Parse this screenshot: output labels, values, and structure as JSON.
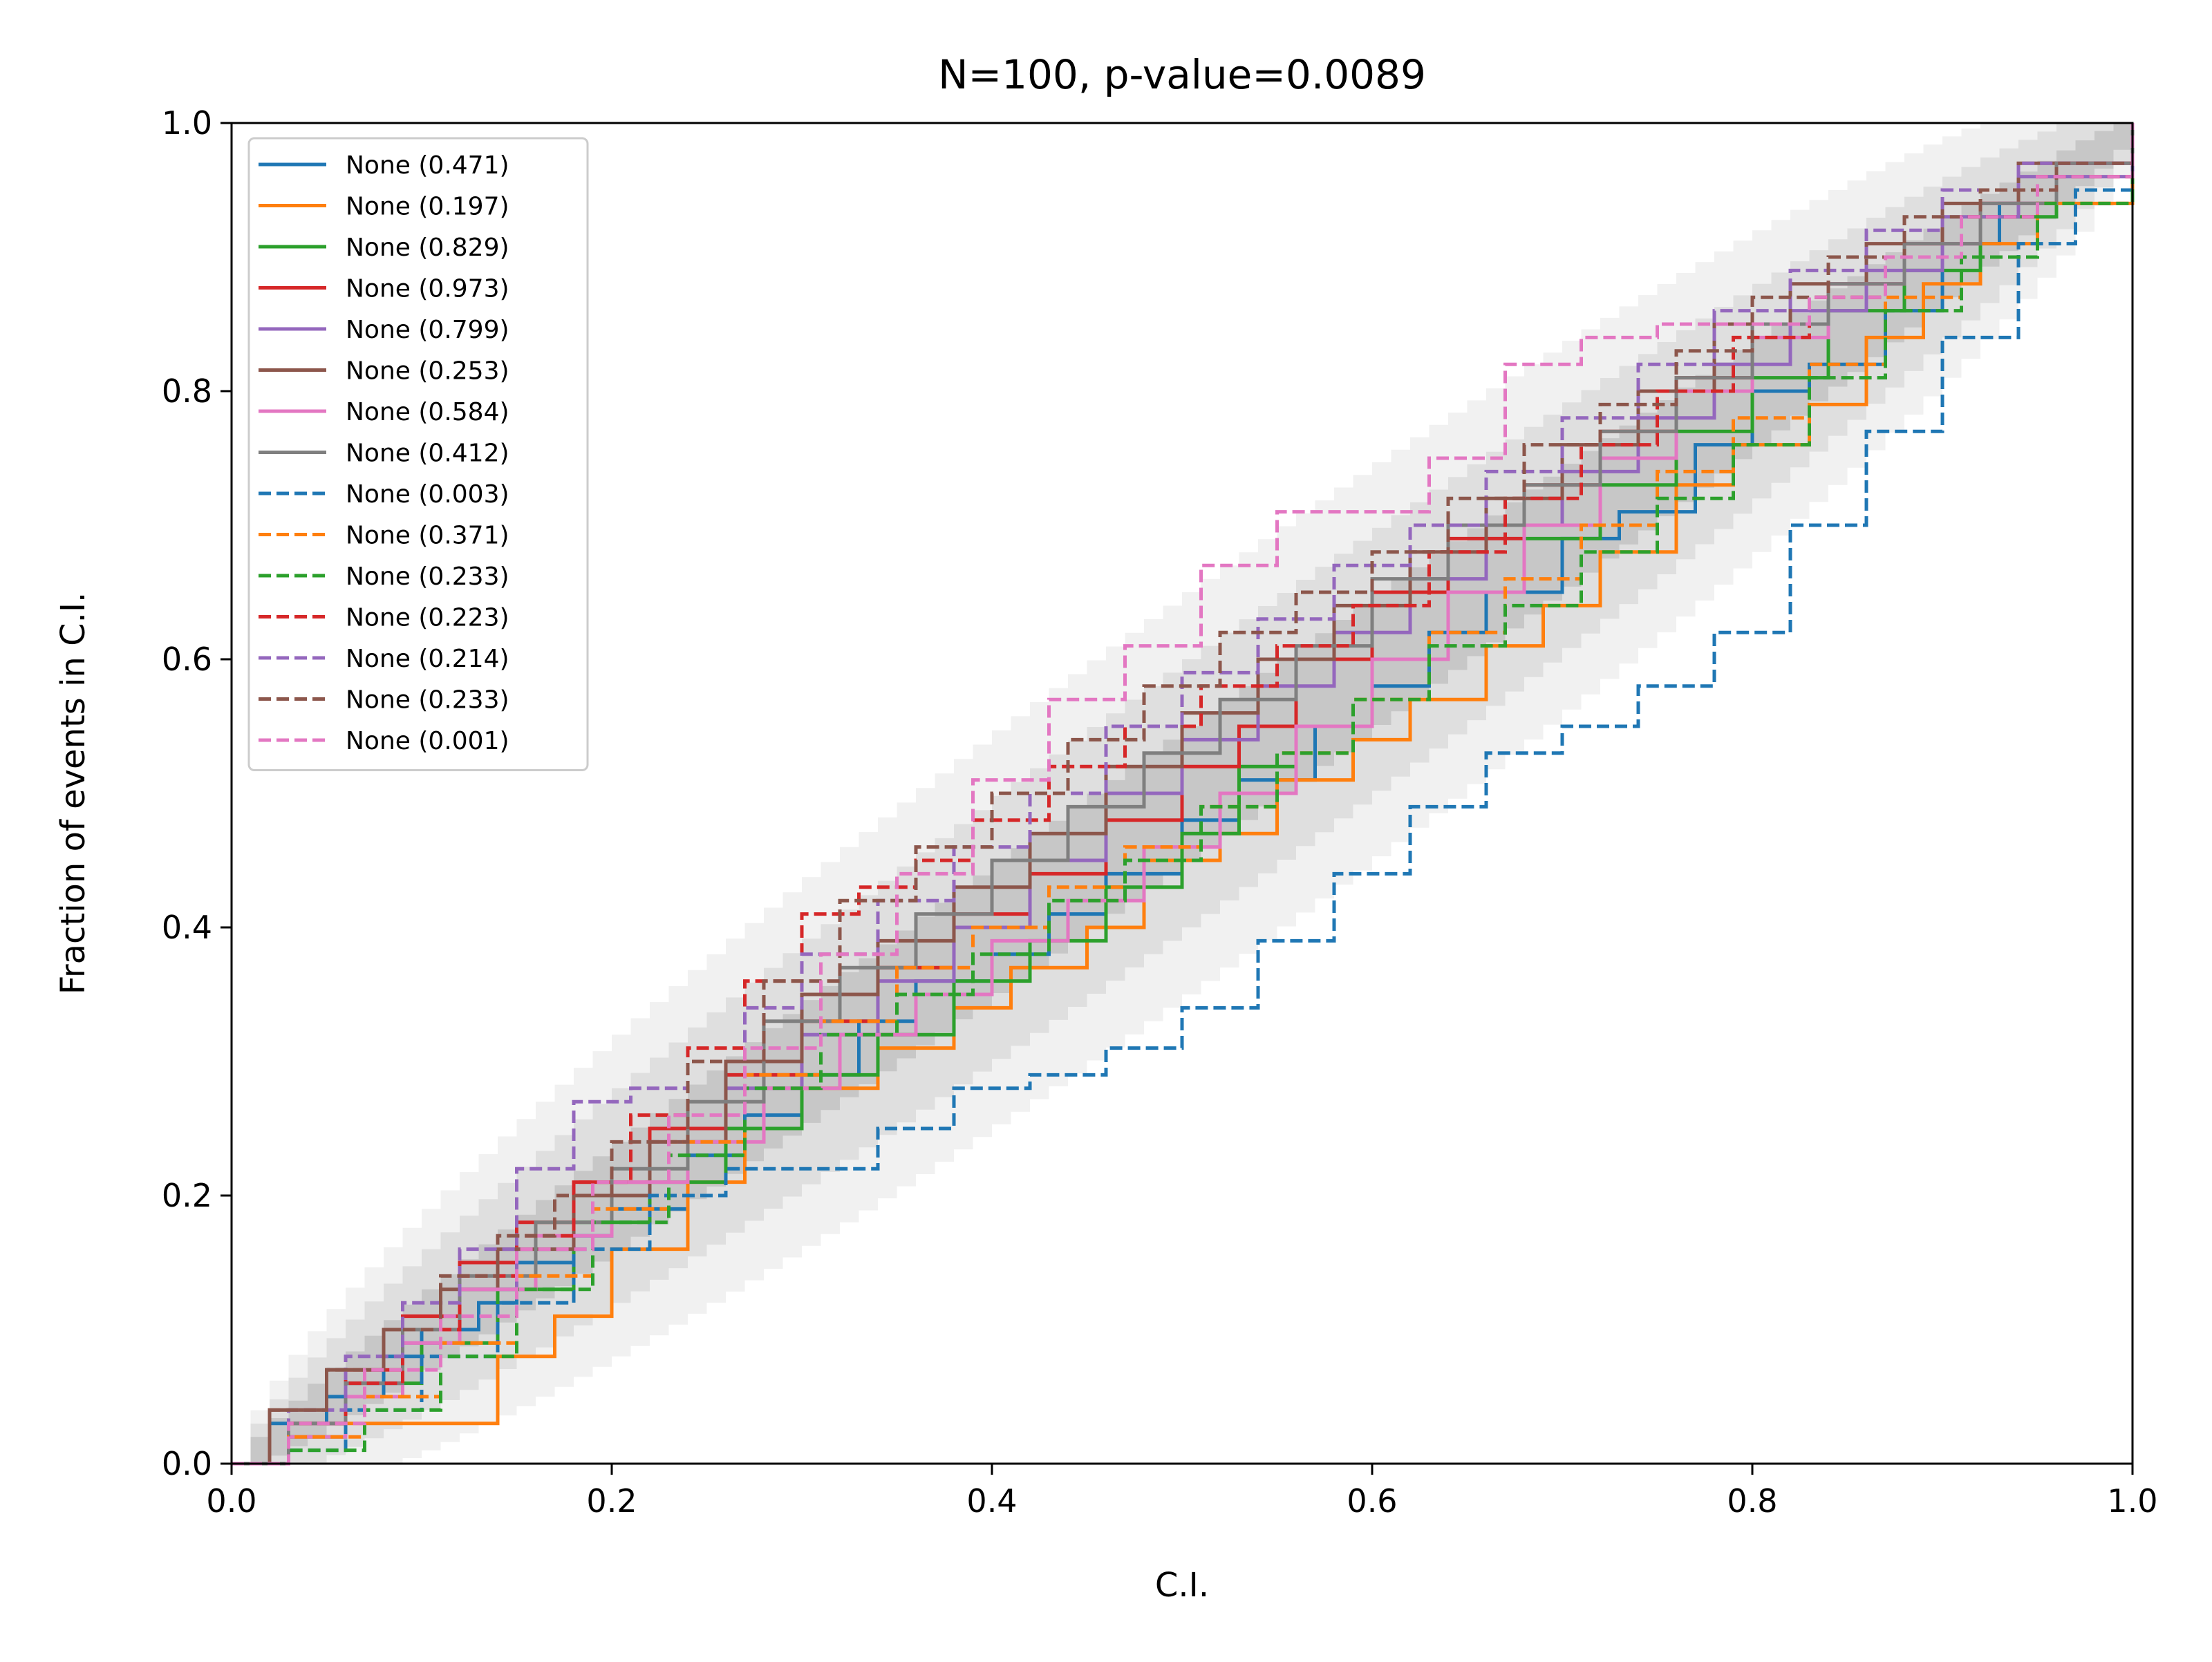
{
  "chart_data": {
    "type": "line",
    "title": "N=100, p-value=0.0089",
    "xlabel": "C.I.",
    "ylabel": "Fraction of events in C.I.",
    "xlim": [
      0.0,
      1.0
    ],
    "ylim": [
      0.0,
      1.0
    ],
    "xticks": [
      "0.0",
      "0.2",
      "0.4",
      "0.6",
      "0.8",
      "1.0"
    ],
    "yticks": [
      "0.0",
      "0.2",
      "0.4",
      "0.6",
      "0.8",
      "1.0"
    ],
    "grid": false,
    "legend_position": "upper-left",
    "confidence_bands": [
      {
        "sigma": 1,
        "color": "#bfbfbf",
        "opacity": 0.75
      },
      {
        "sigma": 2,
        "color": "#d6d6d6",
        "opacity": 0.65
      },
      {
        "sigma": 3,
        "color": "#e8e8e8",
        "opacity": 0.6
      }
    ],
    "series": [
      {
        "name": "None (0.471)",
        "color": "#1f77b4",
        "dash": "solid",
        "x": [
          0,
          0.02,
          0.05,
          0.08,
          0.1,
          0.13,
          0.15,
          0.18,
          0.2,
          0.24,
          0.27,
          0.3,
          0.33,
          0.36,
          0.4,
          0.43,
          0.46,
          0.5,
          0.53,
          0.57,
          0.6,
          0.63,
          0.66,
          0.7,
          0.73,
          0.77,
          0.8,
          0.83,
          0.87,
          0.9,
          0.93,
          0.96,
          1.0
        ],
        "y": [
          0,
          0.03,
          0.05,
          0.08,
          0.1,
          0.12,
          0.15,
          0.17,
          0.19,
          0.23,
          0.26,
          0.29,
          0.33,
          0.36,
          0.38,
          0.41,
          0.44,
          0.48,
          0.51,
          0.55,
          0.58,
          0.62,
          0.65,
          0.69,
          0.71,
          0.76,
          0.8,
          0.82,
          0.86,
          0.91,
          0.94,
          0.97,
          1.0
        ]
      },
      {
        "name": "None (0.197)",
        "color": "#ff7f0e",
        "dash": "solid",
        "x": [
          0,
          0.03,
          0.06,
          0.1,
          0.137,
          0.14,
          0.17,
          0.2,
          0.24,
          0.27,
          0.3,
          0.34,
          0.38,
          0.41,
          0.45,
          0.48,
          0.52,
          0.55,
          0.59,
          0.62,
          0.66,
          0.69,
          0.72,
          0.76,
          0.79,
          0.83,
          0.86,
          0.89,
          0.92,
          0.95,
          1.0
        ],
        "y": [
          0,
          0.03,
          0.03,
          0.03,
          0.03,
          0.08,
          0.11,
          0.16,
          0.21,
          0.25,
          0.28,
          0.31,
          0.34,
          0.37,
          0.4,
          0.45,
          0.47,
          0.51,
          0.54,
          0.57,
          0.61,
          0.64,
          0.68,
          0.73,
          0.76,
          0.79,
          0.84,
          0.88,
          0.91,
          0.94,
          1.0
        ]
      },
      {
        "name": "None (0.829)",
        "color": "#2ca02c",
        "dash": "solid",
        "x": [
          0,
          0.03,
          0.06,
          0.1,
          0.14,
          0.18,
          0.22,
          0.26,
          0.3,
          0.34,
          0.38,
          0.42,
          0.46,
          0.5,
          0.53,
          0.56,
          0.6,
          0.64,
          0.68,
          0.72,
          0.76,
          0.8,
          0.84,
          0.88,
          0.92,
          0.96,
          1.0
        ],
        "y": [
          0,
          0.02,
          0.06,
          0.09,
          0.13,
          0.18,
          0.21,
          0.25,
          0.29,
          0.32,
          0.36,
          0.39,
          0.43,
          0.47,
          0.52,
          0.55,
          0.6,
          0.65,
          0.69,
          0.73,
          0.77,
          0.81,
          0.86,
          0.89,
          0.93,
          0.97,
          1.0
        ]
      },
      {
        "name": "None (0.973)",
        "color": "#d62728",
        "dash": "solid",
        "x": [
          0,
          0.03,
          0.06,
          0.09,
          0.12,
          0.15,
          0.18,
          0.22,
          0.26,
          0.3,
          0.34,
          0.38,
          0.42,
          0.46,
          0.5,
          0.53,
          0.56,
          0.6,
          0.64,
          0.68,
          0.72,
          0.76,
          0.8,
          0.84,
          0.88,
          0.92,
          0.96,
          1.0
        ],
        "y": [
          0,
          0.03,
          0.07,
          0.11,
          0.15,
          0.18,
          0.21,
          0.25,
          0.29,
          0.33,
          0.37,
          0.41,
          0.44,
          0.48,
          0.52,
          0.55,
          0.6,
          0.65,
          0.69,
          0.73,
          0.77,
          0.81,
          0.85,
          0.88,
          0.91,
          0.94,
          0.97,
          1.0
        ]
      },
      {
        "name": "None (0.799)",
        "color": "#9467bd",
        "dash": "solid",
        "x": [
          0,
          0.03,
          0.06,
          0.09,
          0.12,
          0.15,
          0.18,
          0.22,
          0.26,
          0.3,
          0.34,
          0.38,
          0.42,
          0.46,
          0.5,
          0.54,
          0.58,
          0.62,
          0.66,
          0.7,
          0.74,
          0.78,
          0.82,
          0.86,
          0.9,
          0.94,
          1.0
        ],
        "y": [
          0,
          0.03,
          0.06,
          0.09,
          0.13,
          0.16,
          0.2,
          0.24,
          0.28,
          0.32,
          0.36,
          0.4,
          0.45,
          0.5,
          0.54,
          0.58,
          0.62,
          0.66,
          0.7,
          0.74,
          0.78,
          0.82,
          0.86,
          0.89,
          0.93,
          0.96,
          1.0
        ]
      },
      {
        "name": "None (0.253)",
        "color": "#8c564b",
        "dash": "solid",
        "x": [
          0,
          0.02,
          0.05,
          0.08,
          0.11,
          0.14,
          0.18,
          0.22,
          0.26,
          0.3,
          0.34,
          0.38,
          0.42,
          0.46,
          0.5,
          0.54,
          0.58,
          0.62,
          0.66,
          0.7,
          0.74,
          0.78,
          0.82,
          0.86,
          0.9,
          0.94,
          1.0
        ],
        "y": [
          0,
          0.04,
          0.07,
          0.1,
          0.13,
          0.16,
          0.2,
          0.24,
          0.3,
          0.35,
          0.39,
          0.43,
          0.47,
          0.52,
          0.56,
          0.6,
          0.64,
          0.68,
          0.72,
          0.76,
          0.8,
          0.85,
          0.88,
          0.91,
          0.94,
          0.97,
          1.0
        ]
      },
      {
        "name": "None (0.584)",
        "color": "#e377c2",
        "dash": "solid",
        "x": [
          0,
          0.03,
          0.06,
          0.09,
          0.12,
          0.16,
          0.2,
          0.24,
          0.28,
          0.32,
          0.36,
          0.4,
          0.44,
          0.48,
          0.52,
          0.56,
          0.6,
          0.64,
          0.68,
          0.72,
          0.76,
          0.8,
          0.84,
          0.88,
          0.92,
          0.96,
          1.0
        ],
        "y": [
          0,
          0.02,
          0.05,
          0.09,
          0.13,
          0.17,
          0.21,
          0.24,
          0.28,
          0.32,
          0.35,
          0.39,
          0.42,
          0.46,
          0.5,
          0.55,
          0.6,
          0.65,
          0.7,
          0.75,
          0.8,
          0.84,
          0.88,
          0.91,
          0.94,
          0.97,
          1.0
        ]
      },
      {
        "name": "None (0.412)",
        "color": "#7f7f7f",
        "dash": "solid",
        "x": [
          0,
          0.03,
          0.06,
          0.09,
          0.12,
          0.16,
          0.2,
          0.24,
          0.28,
          0.32,
          0.36,
          0.4,
          0.44,
          0.48,
          0.52,
          0.56,
          0.6,
          0.64,
          0.68,
          0.72,
          0.76,
          0.8,
          0.84,
          0.88,
          0.92,
          0.96,
          1.0
        ],
        "y": [
          0,
          0.03,
          0.06,
          0.1,
          0.14,
          0.18,
          0.22,
          0.27,
          0.33,
          0.37,
          0.41,
          0.45,
          0.49,
          0.53,
          0.57,
          0.61,
          0.66,
          0.7,
          0.73,
          0.77,
          0.81,
          0.85,
          0.88,
          0.91,
          0.94,
          0.97,
          1.0
        ]
      },
      {
        "name": "None (0.003)",
        "color": "#1f77b4",
        "dash": "dashed",
        "x": [
          0,
          0.03,
          0.06,
          0.1,
          0.14,
          0.18,
          0.22,
          0.26,
          0.3,
          0.34,
          0.38,
          0.42,
          0.46,
          0.5,
          0.54,
          0.58,
          0.62,
          0.66,
          0.7,
          0.74,
          0.78,
          0.82,
          0.86,
          0.9,
          0.94,
          0.97,
          1.0
        ],
        "y": [
          0,
          0.01,
          0.04,
          0.08,
          0.12,
          0.16,
          0.2,
          0.22,
          0.22,
          0.25,
          0.28,
          0.29,
          0.31,
          0.34,
          0.39,
          0.44,
          0.49,
          0.53,
          0.55,
          0.58,
          0.62,
          0.7,
          0.77,
          0.84,
          0.91,
          0.95,
          1.0
        ]
      },
      {
        "name": "None (0.371)",
        "color": "#ff7f0e",
        "dash": "dashed",
        "x": [
          0,
          0.03,
          0.07,
          0.11,
          0.15,
          0.19,
          0.23,
          0.27,
          0.31,
          0.35,
          0.39,
          0.43,
          0.47,
          0.51,
          0.55,
          0.59,
          0.63,
          0.67,
          0.71,
          0.75,
          0.79,
          0.83,
          0.87,
          0.91,
          0.95,
          1.0
        ],
        "y": [
          0,
          0.02,
          0.05,
          0.09,
          0.14,
          0.19,
          0.24,
          0.29,
          0.33,
          0.37,
          0.4,
          0.43,
          0.46,
          0.49,
          0.53,
          0.57,
          0.62,
          0.66,
          0.7,
          0.74,
          0.78,
          0.82,
          0.87,
          0.9,
          0.94,
          1.0
        ]
      },
      {
        "name": "None (0.233)",
        "color": "#2ca02c",
        "dash": "dashed",
        "x": [
          0,
          0.03,
          0.07,
          0.11,
          0.15,
          0.19,
          0.23,
          0.27,
          0.31,
          0.35,
          0.39,
          0.43,
          0.47,
          0.51,
          0.55,
          0.59,
          0.63,
          0.67,
          0.71,
          0.75,
          0.79,
          0.83,
          0.87,
          0.91,
          0.95,
          1.0
        ],
        "y": [
          0,
          0.01,
          0.04,
          0.08,
          0.13,
          0.18,
          0.23,
          0.28,
          0.32,
          0.35,
          0.38,
          0.42,
          0.45,
          0.49,
          0.53,
          0.57,
          0.61,
          0.64,
          0.68,
          0.72,
          0.76,
          0.81,
          0.86,
          0.9,
          0.94,
          1.0
        ]
      },
      {
        "name": "None (0.223)",
        "color": "#d62728",
        "dash": "dashed",
        "x": [
          0,
          0.03,
          0.06,
          0.09,
          0.12,
          0.15,
          0.18,
          0.21,
          0.24,
          0.27,
          0.3,
          0.33,
          0.36,
          0.39,
          0.43,
          0.47,
          0.51,
          0.55,
          0.59,
          0.63,
          0.67,
          0.71,
          0.75,
          0.79,
          0.83,
          0.87,
          0.91,
          0.95,
          1.0
        ],
        "y": [
          0,
          0.03,
          0.06,
          0.1,
          0.14,
          0.17,
          0.21,
          0.26,
          0.31,
          0.36,
          0.41,
          0.43,
          0.45,
          0.48,
          0.52,
          0.55,
          0.58,
          0.61,
          0.64,
          0.68,
          0.72,
          0.76,
          0.8,
          0.84,
          0.87,
          0.9,
          0.93,
          0.96,
          1.0
        ]
      },
      {
        "name": "None (0.214)",
        "color": "#9467bd",
        "dash": "dashed",
        "x": [
          0,
          0.03,
          0.06,
          0.09,
          0.12,
          0.15,
          0.18,
          0.21,
          0.24,
          0.27,
          0.3,
          0.34,
          0.38,
          0.42,
          0.46,
          0.5,
          0.54,
          0.58,
          0.62,
          0.66,
          0.7,
          0.74,
          0.78,
          0.82,
          0.86,
          0.9,
          0.94,
          1.0
        ],
        "y": [
          0,
          0.04,
          0.08,
          0.12,
          0.16,
          0.22,
          0.27,
          0.28,
          0.3,
          0.34,
          0.38,
          0.42,
          0.46,
          0.5,
          0.55,
          0.59,
          0.63,
          0.67,
          0.7,
          0.74,
          0.78,
          0.82,
          0.86,
          0.89,
          0.92,
          0.95,
          0.97,
          1.0
        ]
      },
      {
        "name": "None (0.233)",
        "color": "#8c564b",
        "dash": "dashed",
        "x": [
          0,
          0.02,
          0.05,
          0.08,
          0.11,
          0.14,
          0.17,
          0.2,
          0.24,
          0.28,
          0.32,
          0.36,
          0.4,
          0.44,
          0.48,
          0.52,
          0.56,
          0.6,
          0.64,
          0.68,
          0.72,
          0.76,
          0.8,
          0.84,
          0.88,
          0.92,
          0.96,
          1.0
        ],
        "y": [
          0,
          0.04,
          0.07,
          0.1,
          0.14,
          0.17,
          0.2,
          0.24,
          0.3,
          0.36,
          0.42,
          0.46,
          0.5,
          0.54,
          0.58,
          0.62,
          0.65,
          0.68,
          0.72,
          0.76,
          0.79,
          0.83,
          0.87,
          0.9,
          0.93,
          0.95,
          0.97,
          1.0
        ]
      },
      {
        "name": "None (0.001)",
        "color": "#e377c2",
        "dash": "dashed",
        "x": [
          0,
          0.03,
          0.07,
          0.11,
          0.15,
          0.19,
          0.23,
          0.27,
          0.31,
          0.35,
          0.39,
          0.43,
          0.47,
          0.51,
          0.55,
          0.59,
          0.63,
          0.67,
          0.71,
          0.75,
          0.79,
          0.83,
          0.87,
          0.91,
          0.95,
          1.0
        ],
        "y": [
          0,
          0.03,
          0.07,
          0.11,
          0.16,
          0.21,
          0.26,
          0.31,
          0.38,
          0.44,
          0.51,
          0.57,
          0.61,
          0.67,
          0.71,
          0.71,
          0.75,
          0.82,
          0.84,
          0.85,
          0.85,
          0.87,
          0.9,
          0.93,
          0.96,
          1.0
        ]
      }
    ]
  }
}
